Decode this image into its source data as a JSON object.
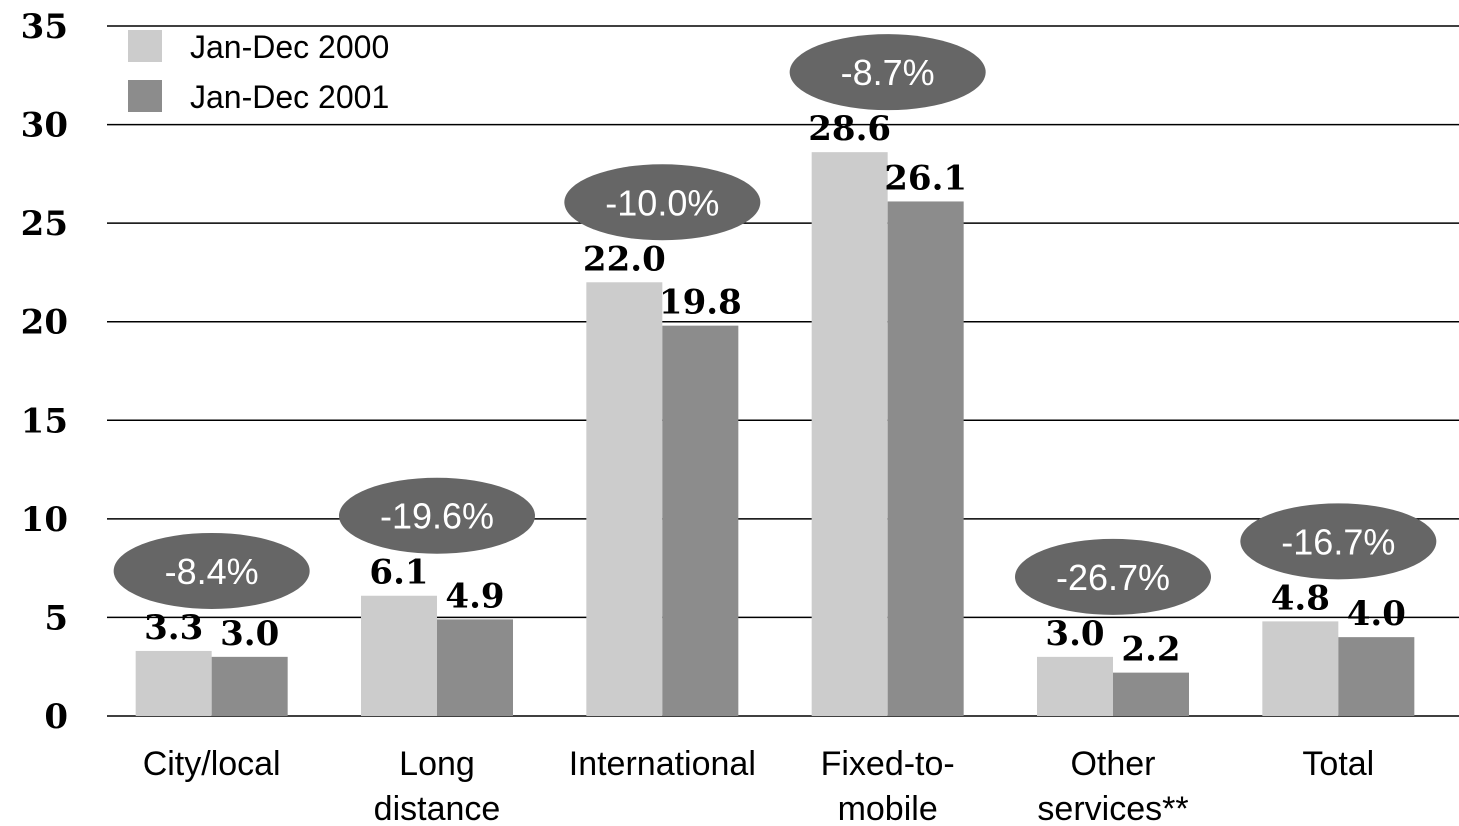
{
  "chart_data": {
    "type": "bar",
    "title": "",
    "xlabel": "",
    "ylabel": "",
    "ylim": [
      0,
      35
    ],
    "yticks": [
      0,
      5,
      10,
      15,
      20,
      25,
      30,
      35
    ],
    "grid": true,
    "legend_position": "top-left",
    "categories": [
      [
        "City/local"
      ],
      [
        "Long",
        "distance"
      ],
      [
        "International"
      ],
      [
        "Fixed-to-",
        "mobile"
      ],
      [
        "Other",
        "services**"
      ],
      [
        "Total"
      ]
    ],
    "series": [
      {
        "name": "Jan-Dec 2000",
        "color": "#cccccc",
        "values": [
          3.3,
          6.1,
          22.0,
          28.6,
          3.0,
          4.8
        ]
      },
      {
        "name": "Jan-Dec 2001",
        "color": "#8c8c8c",
        "values": [
          3.0,
          4.9,
          19.8,
          26.1,
          2.2,
          4.0
        ]
      }
    ],
    "annotations": {
      "color": "#666666",
      "labels": [
        "-8.4%",
        "-19.6%",
        "-10.0%",
        "-8.7%",
        "-26.7%",
        "-16.7%"
      ]
    }
  }
}
